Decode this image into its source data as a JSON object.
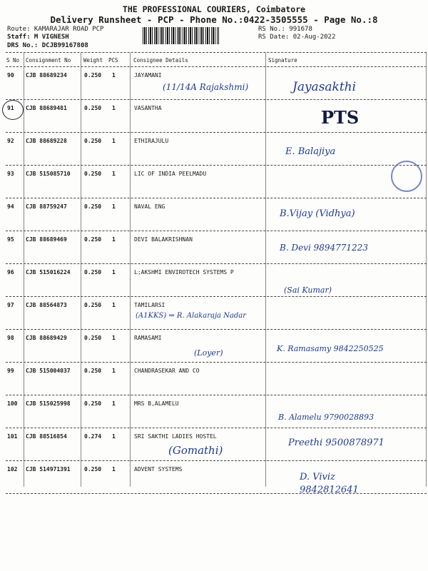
{
  "header": {
    "company": "THE PROFESSIONAL COURIERS, Coimbatore",
    "subtitle": "Delivery Runsheet - PCP - Phone No.:0422-3505555 - Page No.:8",
    "route": "Route: KAMARAJAR ROAD PCP",
    "staff": "Staff: M VIGNESH",
    "drs": "DRS No.: DCJB99167808",
    "rs_no": "RS No.: 991678",
    "rs_date": "RS Date: 02-Aug-2022"
  },
  "columns": {
    "sno": "S No",
    "consignment": "Consignment No",
    "weight": "Weight",
    "pcs": "PCS",
    "consignee": "Consignee Details",
    "signature": "Signature"
  },
  "rows": [
    {
      "sno": "90",
      "cn": "CJB 88689234",
      "wt": "0.250",
      "pcs": "1",
      "name": "JAYAMANI"
    },
    {
      "sno": "91",
      "cn": "CJB 88689481",
      "wt": "0.250",
      "pcs": "1",
      "name": "VASANTHA"
    },
    {
      "sno": "92",
      "cn": "CJB 88689228",
      "wt": "0.250",
      "pcs": "1",
      "name": "ETHIRAJULU"
    },
    {
      "sno": "93",
      "cn": "CJB 515085710",
      "wt": "0.250",
      "pcs": "1",
      "name": "LIC OF INDIA PEELMADU"
    },
    {
      "sno": "94",
      "cn": "CJB 88759247",
      "wt": "0.250",
      "pcs": "1",
      "name": "NAVAL ENG"
    },
    {
      "sno": "95",
      "cn": "CJB 88689469",
      "wt": "0.250",
      "pcs": "1",
      "name": "DEVI BALAKRISHNAN"
    },
    {
      "sno": "96",
      "cn": "CJB 515016224",
      "wt": "0.250",
      "pcs": "1",
      "name": "L;AKSHMI ENVIROTECH SYSTEMS P"
    },
    {
      "sno": "97",
      "cn": "CJB 88564873",
      "wt": "0.250",
      "pcs": "1",
      "name": "TAMILARSI"
    },
    {
      "sno": "98",
      "cn": "CJB 88689429",
      "wt": "0.250",
      "pcs": "1",
      "name": "RAMASAMI"
    },
    {
      "sno": "99",
      "cn": "CJB 515004037",
      "wt": "0.250",
      "pcs": "1",
      "name": "CHANDRASEKAR AND CO"
    },
    {
      "sno": "100",
      "cn": "CJB 515025998",
      "wt": "0.250",
      "pcs": "1",
      "name": "MRS B,ALAMELU"
    },
    {
      "sno": "101",
      "cn": "CJB 88516854",
      "wt": "0.274",
      "pcs": "1",
      "name": "SRI SAKTHI LADIES HOSTEL"
    },
    {
      "sno": "102",
      "cn": "CJB 514971391",
      "wt": "0.250",
      "pcs": "1",
      "name": "ADVENT SYSTEMS"
    }
  ],
  "handwriting": {
    "h90": "(11/14A Rajakshmi)",
    "s90": "Jayasakthi",
    "s91": "PTS",
    "s92": "E. Balajiya",
    "s94": "B.Vijay (Vidhya)",
    "s95": "B. Devi 9894771223",
    "s96": "(Sai Kumar)",
    "h97": "(A1KKS) ⇒ R. Alakaraja Nadar",
    "h98": "(Loyer)",
    "s98": "K. Ramasamy 9842250525",
    "s100": "B. Alamelu 9790028893",
    "h101": "(Gomathi)",
    "s101": "Preethi 9500878971",
    "s102": "D. Viviz 9842812641"
  }
}
